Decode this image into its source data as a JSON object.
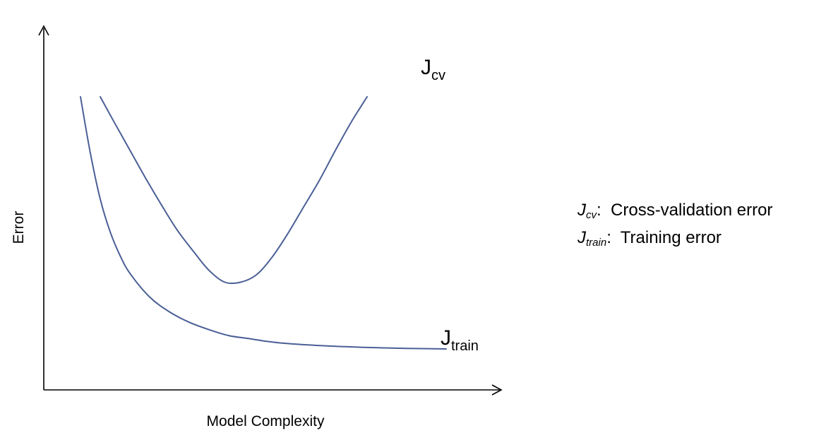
{
  "chart_data": {
    "type": "line",
    "title": "",
    "xlabel": "Model Complexity",
    "ylabel": "Error",
    "xlim": [
      0,
      10
    ],
    "ylim": [
      0,
      10
    ],
    "ticks": "none",
    "grid": false,
    "legend_position": "right",
    "series": [
      {
        "name": "Jcv",
        "label_main": "J",
        "label_sub": "cv",
        "color": "#4a5f96",
        "x": [
          1.25,
          1.6,
          2.0,
          2.4,
          2.8,
          3.2,
          3.6,
          4.0,
          4.4,
          4.8,
          5.2,
          5.6,
          6.0,
          6.4,
          6.8,
          7.2,
          7.6,
          8.0
        ],
        "y": [
          9.0,
          8.15,
          7.2,
          6.25,
          5.35,
          4.5,
          3.8,
          3.15,
          2.75,
          2.75,
          3.0,
          3.6,
          4.4,
          5.3,
          6.2,
          7.2,
          8.15,
          9.0
        ]
      },
      {
        "name": "Jtrain",
        "label_main": "J",
        "label_sub": "train",
        "color": "#4a5f96",
        "x": [
          0.75,
          1.0,
          1.25,
          1.5,
          1.75,
          2.0,
          2.5,
          3.0,
          3.5,
          4.0,
          4.5,
          5.0,
          5.5,
          6.0,
          7.0,
          8.0,
          9.0,
          10.0
        ],
        "y": [
          9.0,
          7.1,
          5.55,
          4.45,
          3.65,
          3.05,
          2.25,
          1.75,
          1.4,
          1.15,
          0.95,
          0.85,
          0.75,
          0.68,
          0.6,
          0.55,
          0.52,
          0.5
        ]
      }
    ]
  },
  "legend": {
    "items": [
      {
        "sym_main": "J",
        "sym_sub": "cv",
        "sep": ":",
        "text": "Cross-validation error"
      },
      {
        "sym_main": "J",
        "sym_sub": "train",
        "sep": ":",
        "text": "Training error"
      }
    ]
  }
}
